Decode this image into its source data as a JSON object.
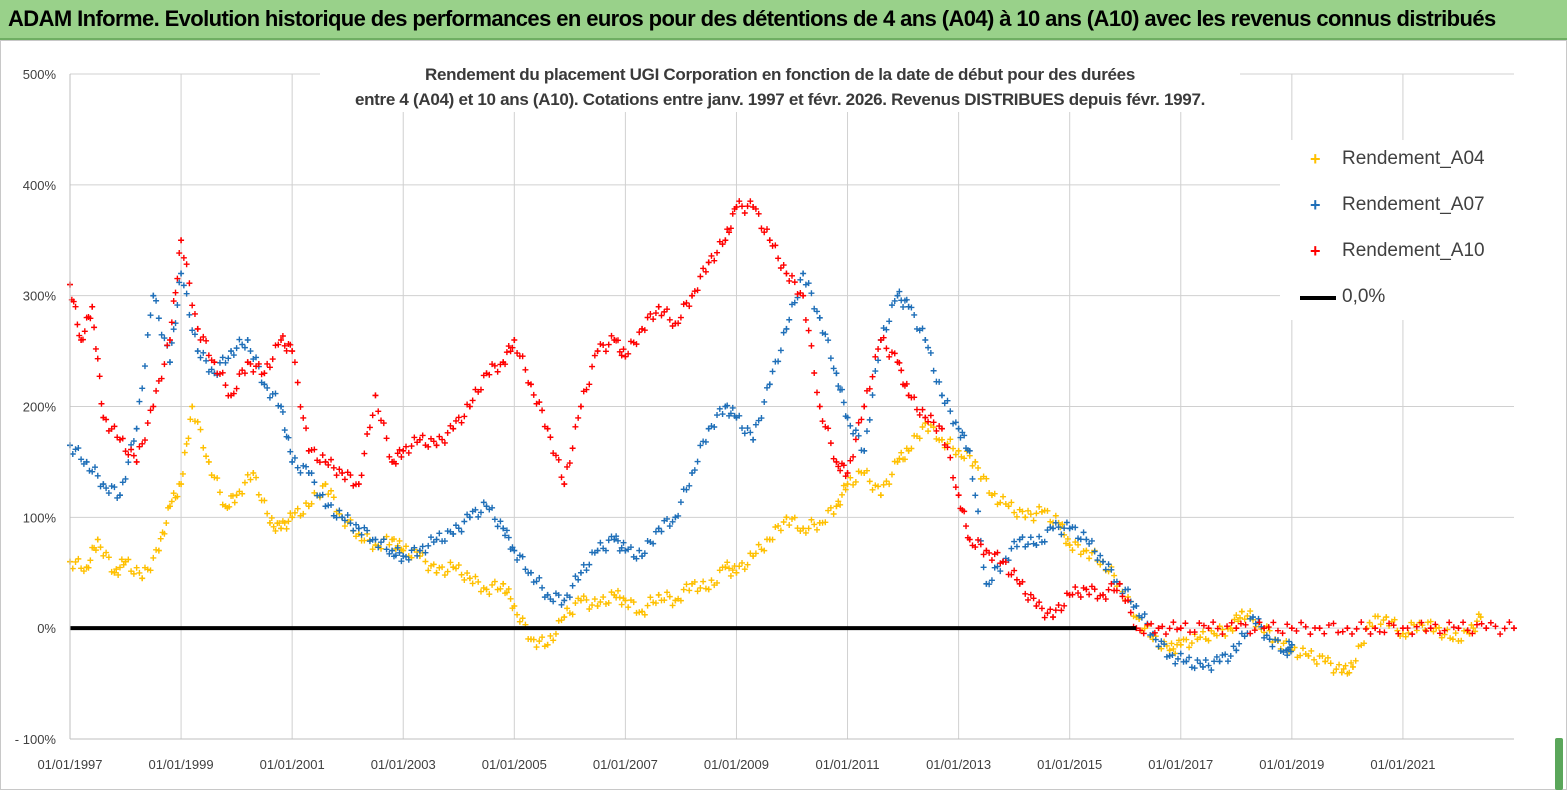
{
  "header": {
    "title": "ADAM Informe. Evolution historique des performances en euros pour des détentions de 4 ans (A04) à 10 ans (A10) avec les revenus connus distribués"
  },
  "chart_data": {
    "type": "scatter",
    "title_line1": "Rendement du placement UGI Corporation en fonction de la date de début pour des durées",
    "title_line2": "entre 4 (A04) et 10 ans (A10). Cotations entre janv. 1997 et févr. 2026. Revenus DISTRIBUES depuis févr. 1997.",
    "xlabel": "",
    "ylabel": "",
    "ylim": [
      -100,
      500
    ],
    "xlim": [
      1997.0,
      2023.0
    ],
    "y_ticks": [
      "500%",
      "400%",
      "300%",
      "200%",
      "100%",
      "0%",
      "- 100%"
    ],
    "y_tick_values": [
      500,
      400,
      300,
      200,
      100,
      0,
      -100
    ],
    "x_ticks": [
      "01/01/1997",
      "01/01/1999",
      "01/01/2001",
      "01/01/2003",
      "01/01/2005",
      "01/01/2007",
      "01/01/2009",
      "01/01/2011",
      "01/01/2013",
      "01/01/2015",
      "01/01/2017",
      "01/01/2019",
      "01/01/2021"
    ],
    "x_tick_values": [
      1997,
      1999,
      2001,
      2003,
      2005,
      2007,
      2009,
      2011,
      2013,
      2015,
      2017,
      2019,
      2021
    ],
    "grid": true,
    "legend_position": "right",
    "series": [
      {
        "name": "Rendement_A04",
        "color": "#ffc000",
        "marker": "+",
        "x": [
          1997.0,
          1997.3,
          1997.5,
          1997.8,
          1998.0,
          1998.3,
          1998.6,
          1998.8,
          1999.0,
          1999.2,
          1999.5,
          1999.8,
          2000.0,
          2000.3,
          2000.6,
          2000.8,
          2001.0,
          2001.3,
          2001.6,
          2001.9,
          2002.2,
          2002.5,
          2002.8,
          2003.0,
          2003.3,
          2003.6,
          2003.9,
          2004.2,
          2004.5,
          2004.8,
          2005.0,
          2005.3,
          2005.6,
          2005.9,
          2006.2,
          2006.5,
          2006.8,
          2007.0,
          2007.3,
          2007.6,
          2007.9,
          2008.2,
          2008.5,
          2008.8,
          2009.0,
          2009.3,
          2009.6,
          2009.9,
          2010.2,
          2010.5,
          2010.8,
          2011.0,
          2011.3,
          2011.6,
          2011.9,
          2012.1,
          2012.4,
          2012.7,
          2013.0,
          2013.3,
          2013.6,
          2013.9,
          2014.2,
          2014.5,
          2014.8,
          2015.0,
          2015.3,
          2015.6,
          2015.9,
          2016.2,
          2016.5,
          2016.8,
          2017.0,
          2017.3,
          2017.6,
          2017.9,
          2018.1,
          2018.4,
          2018.7,
          2019.0,
          2019.3,
          2019.6,
          2019.9,
          2020.1,
          2020.4,
          2020.7,
          2021.0,
          2021.3,
          2021.6,
          2021.9,
          2022.2,
          2022.4
        ],
        "y": [
          60,
          55,
          80,
          50,
          60,
          45,
          70,
          110,
          130,
          200,
          150,
          110,
          120,
          140,
          95,
          90,
          100,
          110,
          130,
          100,
          85,
          75,
          80,
          70,
          65,
          50,
          55,
          45,
          35,
          40,
          20,
          -10,
          -15,
          10,
          25,
          20,
          30,
          25,
          15,
          30,
          25,
          40,
          35,
          55,
          50,
          65,
          80,
          100,
          90,
          95,
          110,
          130,
          140,
          120,
          150,
          160,
          185,
          170,
          160,
          150,
          120,
          110,
          100,
          105,
          95,
          75,
          70,
          60,
          40,
          10,
          -10,
          -20,
          -15,
          -10,
          -5,
          0,
          15,
          5,
          -10,
          -20,
          -25,
          -30,
          -40,
          -35,
          5,
          10,
          -5,
          5,
          0,
          -10,
          -5,
          10
        ]
      },
      {
        "name": "Rendement_A07",
        "color": "#1f6fb8",
        "marker": "+",
        "x": [
          1997.0,
          1997.3,
          1997.6,
          1997.9,
          1998.2,
          1998.5,
          1998.8,
          1999.0,
          1999.3,
          1999.6,
          1999.9,
          2000.2,
          2000.5,
          2000.8,
          2001.0,
          2001.3,
          2001.6,
          2001.9,
          2002.2,
          2002.5,
          2002.8,
          2003.0,
          2003.3,
          2003.6,
          2003.9,
          2004.2,
          2004.5,
          2004.8,
          2005.0,
          2005.3,
          2005.6,
          2005.9,
          2006.2,
          2006.5,
          2006.8,
          2007.0,
          2007.3,
          2007.6,
          2007.9,
          2008.2,
          2008.5,
          2008.8,
          2009.0,
          2009.3,
          2009.6,
          2009.9,
          2010.2,
          2010.5,
          2010.8,
          2011.0,
          2011.3,
          2011.6,
          2011.9,
          2012.1,
          2012.4,
          2012.7,
          2013.0,
          2013.2,
          2013.5,
          2013.8,
          2014.1,
          2014.4,
          2014.7,
          2015.0,
          2015.3,
          2015.6,
          2015.9,
          2016.2,
          2016.5,
          2016.8,
          2017.1,
          2017.4,
          2017.7,
          2018.0,
          2018.3,
          2018.6,
          2018.9,
          2019.0
        ],
        "y": [
          165,
          150,
          130,
          120,
          180,
          300,
          240,
          320,
          250,
          230,
          250,
          260,
          220,
          200,
          150,
          140,
          110,
          100,
          90,
          80,
          70,
          65,
          70,
          80,
          85,
          100,
          110,
          90,
          70,
          50,
          30,
          25,
          50,
          70,
          80,
          70,
          65,
          90,
          100,
          140,
          180,
          200,
          190,
          170,
          220,
          270,
          320,
          280,
          230,
          190,
          160,
          260,
          300,
          290,
          260,
          210,
          180,
          160,
          40,
          60,
          80,
          75,
          90,
          90,
          80,
          60,
          40,
          20,
          -5,
          -25,
          -30,
          -35,
          -30,
          -20,
          10,
          -10,
          -20,
          -15
        ]
      },
      {
        "name": "Rendement_A10",
        "color": "#ff0000",
        "marker": "+",
        "x": [
          1997.0,
          1997.2,
          1997.4,
          1997.6,
          1997.9,
          1998.2,
          1998.5,
          1998.8,
          1999.0,
          1999.3,
          1999.6,
          1999.9,
          2000.2,
          2000.5,
          2000.8,
          2001.0,
          2001.3,
          2001.6,
          2001.9,
          2002.2,
          2002.5,
          2002.8,
          2003.0,
          2003.3,
          2003.6,
          2003.9,
          2004.2,
          2004.5,
          2004.8,
          2005.0,
          2005.3,
          2005.6,
          2005.9,
          2006.2,
          2006.5,
          2006.8,
          2007.0,
          2007.3,
          2007.6,
          2007.9,
          2008.2,
          2008.5,
          2008.8,
          2009.0,
          2009.3,
          2009.6,
          2009.9,
          2010.2,
          2010.5,
          2010.8,
          2011.0,
          2011.3,
          2011.6,
          2011.9,
          2012.1,
          2012.4,
          2012.7,
          2013.0,
          2013.2,
          2013.5,
          2013.8,
          2014.1,
          2014.4,
          2014.7,
          2015.0,
          2015.3,
          2015.6,
          2015.9,
          2016.2,
          2016.6,
          2017.0,
          2017.5,
          2018.0,
          2018.5,
          2019.0,
          2019.5,
          2020.0,
          2020.5,
          2021.0,
          2021.5,
          2022.0,
          2022.5,
          2023.0
        ],
        "y": [
          310,
          260,
          290,
          190,
          170,
          150,
          200,
          260,
          350,
          270,
          240,
          210,
          240,
          230,
          260,
          250,
          160,
          150,
          140,
          130,
          210,
          150,
          160,
          170,
          165,
          180,
          200,
          230,
          240,
          260,
          220,
          180,
          130,
          200,
          250,
          260,
          245,
          270,
          290,
          275,
          300,
          330,
          350,
          380,
          380,
          350,
          320,
          300,
          200,
          150,
          140,
          200,
          260,
          240,
          210,
          190,
          180,
          120,
          80,
          70,
          60,
          40,
          20,
          10,
          30,
          35,
          30,
          40,
          0,
          0,
          0,
          0,
          0,
          0,
          0,
          0,
          0,
          0,
          0,
          0,
          0,
          0,
          0
        ]
      },
      {
        "name": "0,0%",
        "color": "#000000",
        "marker": "line",
        "x": [
          1997.0,
          2016.2
        ],
        "y": [
          0,
          0
        ]
      }
    ]
  }
}
